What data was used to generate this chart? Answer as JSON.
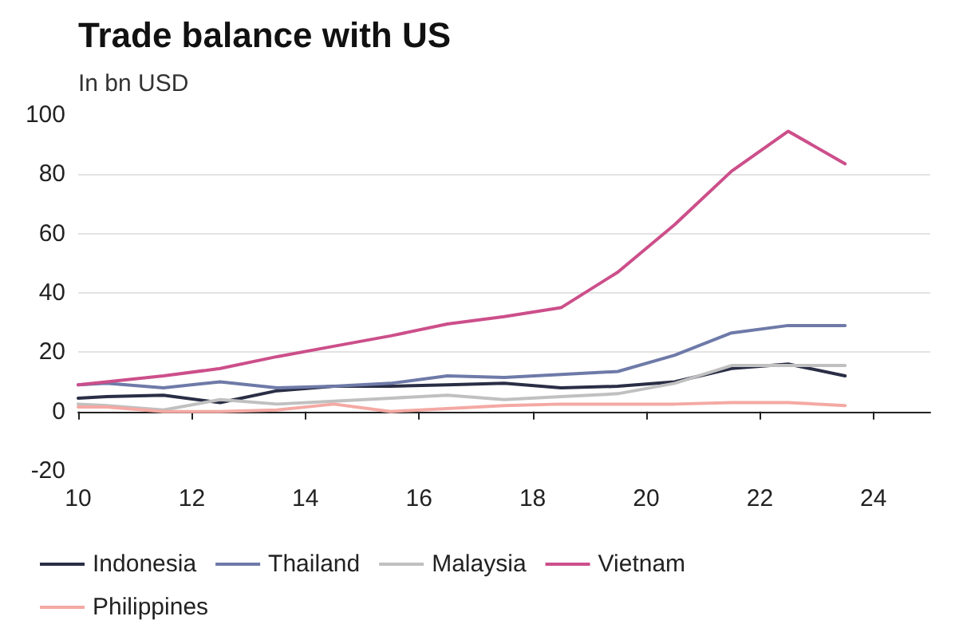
{
  "chart_data": {
    "type": "line",
    "title": "Trade balance with US",
    "subtitle": "In bn USD",
    "x": [
      10,
      10.5,
      11.5,
      12.5,
      13.5,
      14.5,
      15.5,
      16.5,
      17.5,
      18.5,
      19.5,
      20.5,
      21.5,
      22.5,
      23.5
    ],
    "series": [
      {
        "name": "Indonesia",
        "color": "#2a2e45",
        "values": [
          4.5,
          5,
          5.5,
          3,
          7,
          8.5,
          8.5,
          9,
          9.5,
          8,
          8.5,
          10,
          14.5,
          16,
          12
        ]
      },
      {
        "name": "Thailand",
        "color": "#6e7aa8",
        "values": [
          9,
          9.5,
          8,
          10,
          8,
          8.5,
          9.5,
          12,
          11.5,
          12.5,
          13.5,
          19,
          26.5,
          29,
          29
        ]
      },
      {
        "name": "Malaysia",
        "color": "#c0c0c0",
        "values": [
          2.5,
          2,
          0.5,
          4,
          2.5,
          3.5,
          4.5,
          5.5,
          4,
          5,
          6,
          9.5,
          15.5,
          15.5,
          15.5
        ]
      },
      {
        "name": "Vietnam",
        "color": "#cc4f8a",
        "values": [
          9,
          10,
          12,
          14.5,
          18.5,
          22,
          25.5,
          29.5,
          32,
          35,
          47,
          63,
          81,
          94.5,
          83.5
        ]
      },
      {
        "name": "Philippines",
        "color": "#f4a9a3",
        "values": [
          1.5,
          1.5,
          0,
          0,
          0.5,
          2.5,
          0,
          1,
          2,
          2.5,
          2.5,
          2.5,
          3,
          3,
          2
        ]
      }
    ],
    "xlim": [
      10,
      25
    ],
    "xticks": [
      10,
      12,
      14,
      16,
      18,
      20,
      22,
      24
    ],
    "ylim": [
      -20,
      100
    ],
    "yticks": [
      -20,
      0,
      20,
      40,
      60,
      80,
      100
    ],
    "grid": "y",
    "legend": "bottom",
    "marker": "none",
    "line_style": "solid"
  }
}
